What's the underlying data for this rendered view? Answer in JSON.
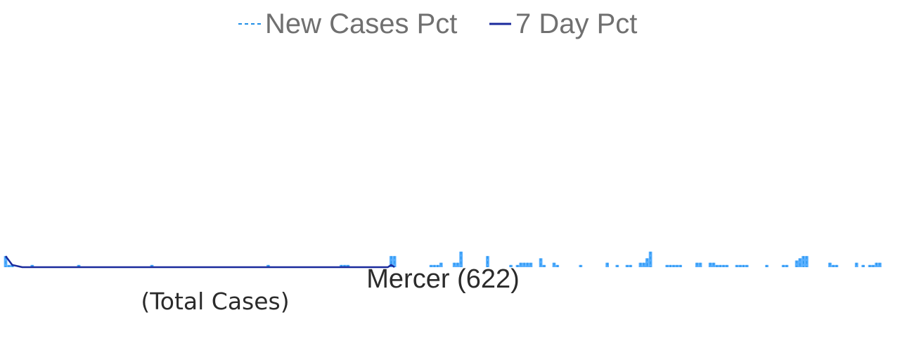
{
  "chart_data": {
    "type": "bar",
    "title": "Mercer (622)",
    "subtitle": "(Total Cases)",
    "legend_position": "top",
    "grid": false,
    "x_count": 265,
    "ylim": [
      0,
      100
    ],
    "colors": {
      "bars": "#55aeff",
      "bars_dashed": "#1f8ee6",
      "line": "#1a2a9c"
    },
    "series": [
      {
        "name": "New Cases Pct",
        "kind": "bar",
        "points": [
          [
            0,
            5
          ],
          [
            1,
            1
          ],
          [
            2,
            1
          ],
          [
            8,
            1
          ],
          [
            22,
            1
          ],
          [
            44,
            1
          ],
          [
            79,
            1
          ],
          [
            102,
            1
          ],
          [
            103,
            1
          ],
          [
            101,
            1
          ],
          [
            116,
            5
          ],
          [
            117,
            5
          ],
          [
            128,
            1
          ],
          [
            129,
            1
          ],
          [
            130,
            1
          ],
          [
            131,
            2
          ],
          [
            135,
            2
          ],
          [
            136,
            2
          ],
          [
            137,
            7
          ],
          [
            145,
            5
          ],
          [
            152,
            1
          ],
          [
            154,
            1
          ],
          [
            155,
            2
          ],
          [
            156,
            2
          ],
          [
            157,
            2
          ],
          [
            158,
            2
          ],
          [
            161,
            4
          ],
          [
            162,
            1
          ],
          [
            165,
            2
          ],
          [
            166,
            1
          ],
          [
            173,
            1
          ],
          [
            181,
            2
          ],
          [
            184,
            1
          ],
          [
            187,
            1
          ],
          [
            188,
            1
          ],
          [
            191,
            2
          ],
          [
            192,
            2
          ],
          [
            193,
            4
          ],
          [
            194,
            7
          ],
          [
            199,
            1
          ],
          [
            200,
            1
          ],
          [
            201,
            1
          ],
          [
            202,
            1
          ],
          [
            203,
            1
          ],
          [
            208,
            2
          ],
          [
            209,
            2
          ],
          [
            212,
            2
          ],
          [
            213,
            2
          ],
          [
            214,
            1
          ],
          [
            215,
            1
          ],
          [
            216,
            1
          ],
          [
            217,
            1
          ],
          [
            220,
            1
          ],
          [
            221,
            1
          ],
          [
            222,
            1
          ],
          [
            223,
            1
          ],
          [
            229,
            1
          ],
          [
            234,
            1
          ],
          [
            235,
            1
          ],
          [
            238,
            3
          ],
          [
            239,
            4
          ],
          [
            240,
            5
          ],
          [
            241,
            5
          ],
          [
            248,
            2
          ],
          [
            249,
            1
          ],
          [
            250,
            1
          ],
          [
            256,
            2
          ],
          [
            258,
            1
          ],
          [
            260,
            1
          ],
          [
            261,
            1
          ],
          [
            262,
            2
          ],
          [
            263,
            2
          ]
        ]
      },
      {
        "name": "7 Day Pct",
        "kind": "line",
        "points": [
          [
            0,
            5
          ],
          [
            2,
            1
          ],
          [
            5,
            0
          ],
          [
            115,
            0
          ],
          [
            116,
            1
          ],
          [
            117,
            0
          ]
        ]
      }
    ]
  },
  "legend": {
    "items": [
      {
        "label": "New Cases Pct",
        "style": "dashed",
        "color": "#1f8ee6"
      },
      {
        "label": "7 Day Pct",
        "style": "solid",
        "color": "#1a2a9c"
      }
    ]
  }
}
